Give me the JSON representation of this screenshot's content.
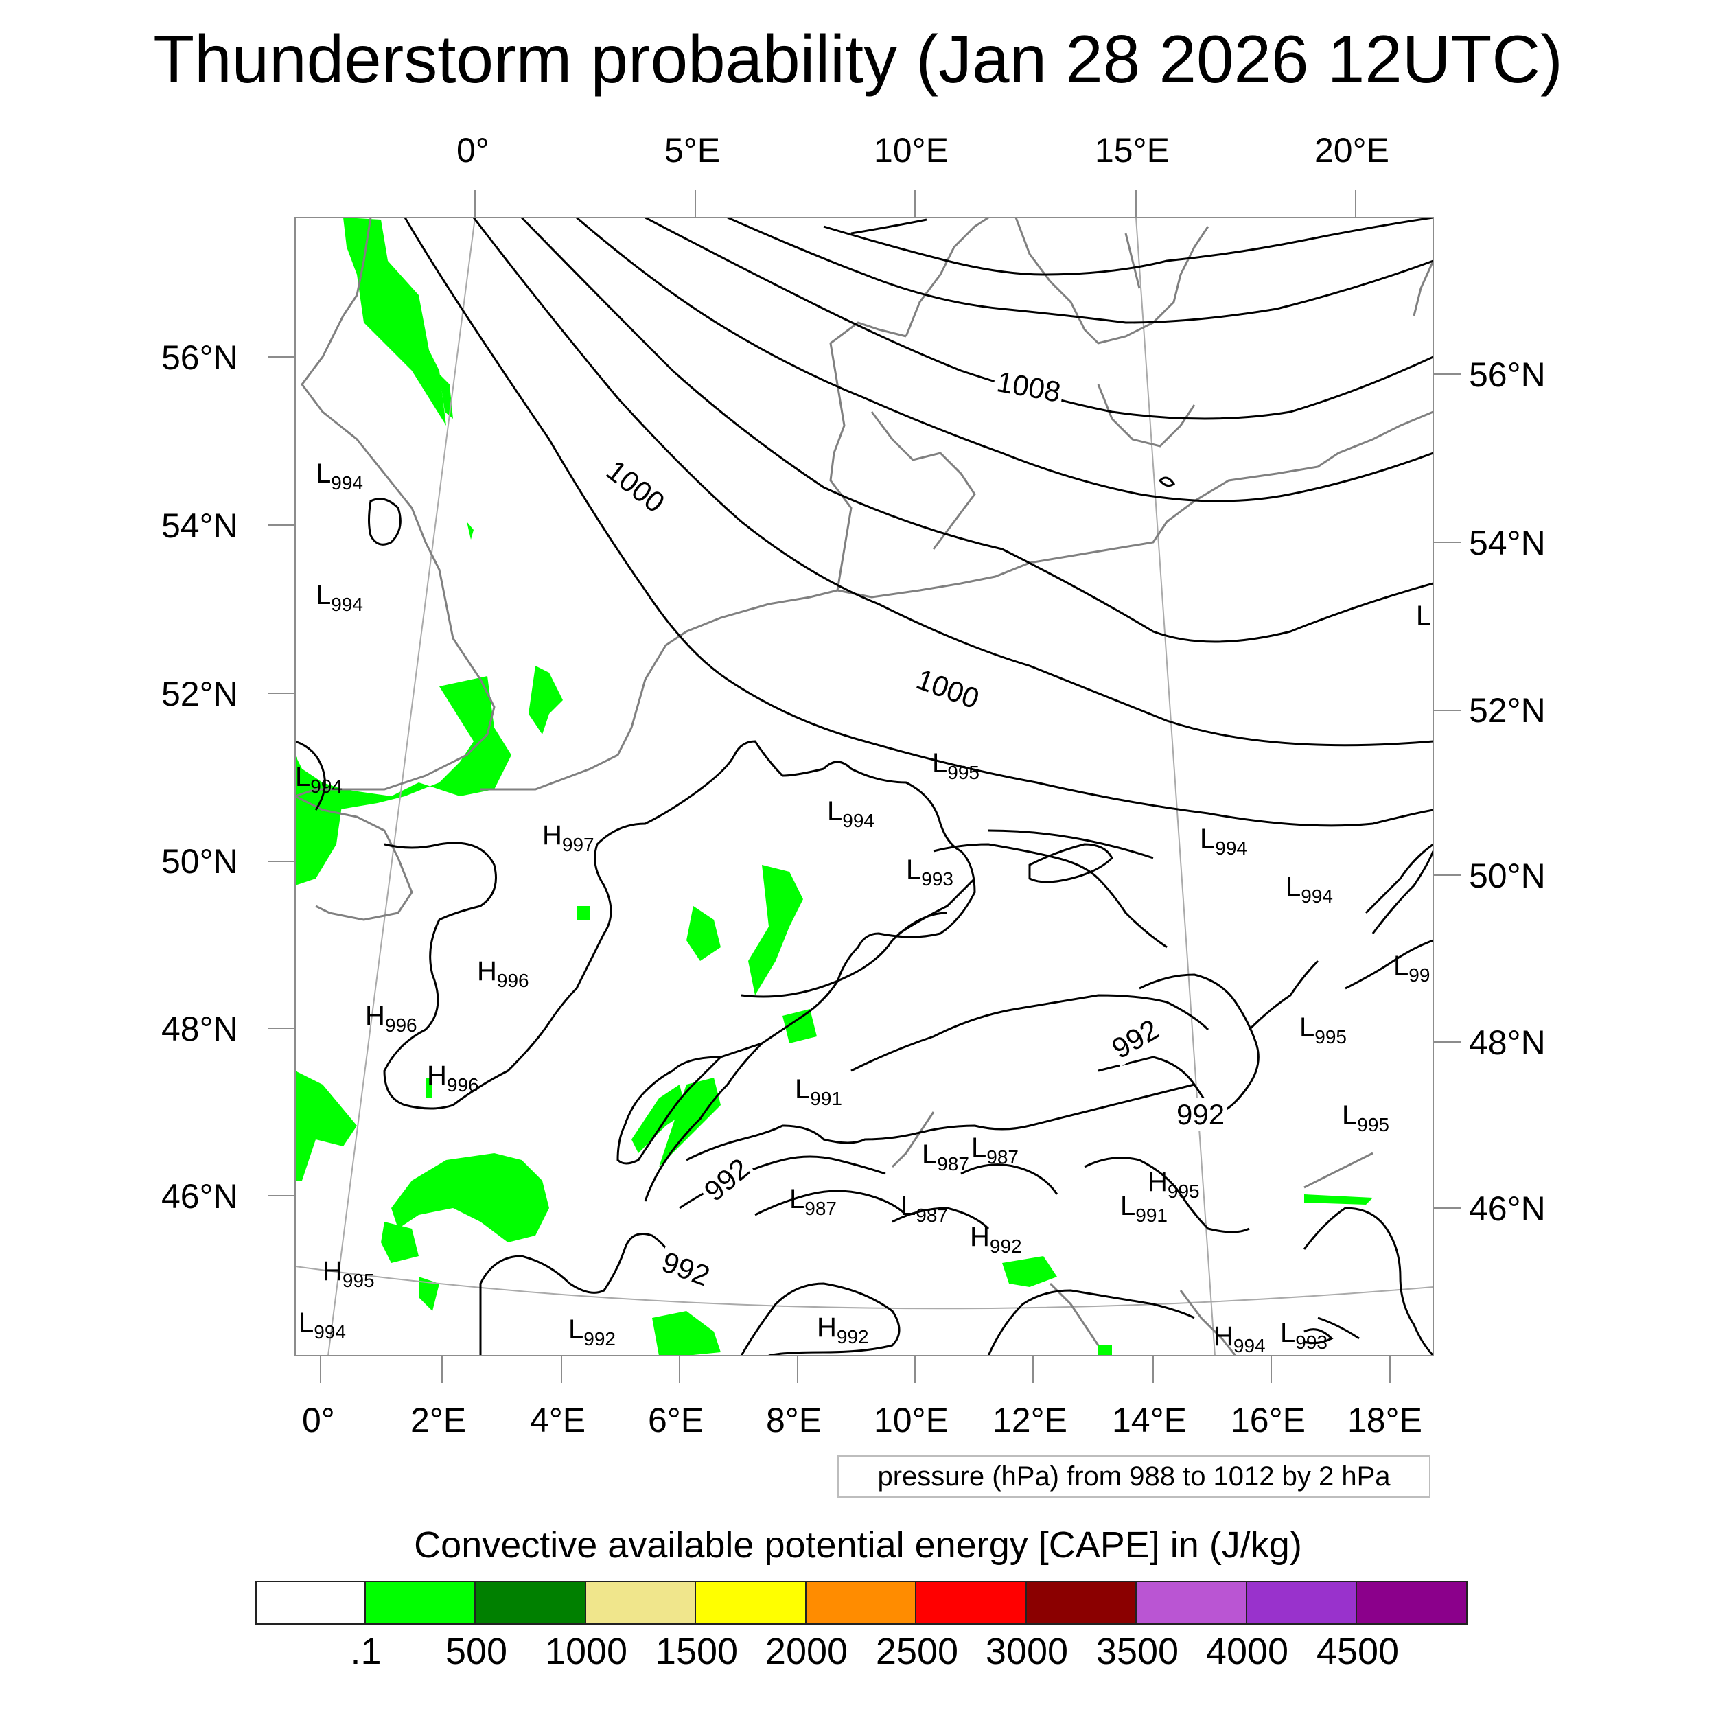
{
  "title": "Thunderstorm probability (Jan 28 2026 12UTC)",
  "map": {
    "region": "Western and Central Europe",
    "lon_top_labels": [
      "0°",
      "5°E",
      "10°E",
      "15°E",
      "20°E"
    ],
    "lon_bottom_labels": [
      "0°",
      "2°E",
      "4°E",
      "6°E",
      "8°E",
      "10°E",
      "12°E",
      "14°E",
      "16°E",
      "18°E"
    ],
    "lat_left_labels": [
      "56°N",
      "54°N",
      "52°N",
      "50°N",
      "48°N",
      "46°N"
    ],
    "lat_right_labels": [
      "56°N",
      "54°N",
      "52°N",
      "50°N",
      "48°N",
      "46°N"
    ],
    "contour_labels": [
      "1008",
      "1000",
      "1000",
      "992",
      "992",
      "992",
      "992"
    ],
    "pressure_centers": [
      {
        "kind": "L",
        "value": "994"
      },
      {
        "kind": "L",
        "value": "994"
      },
      {
        "kind": "L",
        "value": "994"
      },
      {
        "kind": "L",
        "value": "995"
      },
      {
        "kind": "L",
        "value": "994"
      },
      {
        "kind": "H",
        "value": "997"
      },
      {
        "kind": "L",
        "value": "993"
      },
      {
        "kind": "L",
        "value": "994"
      },
      {
        "kind": "L",
        "value": "994"
      },
      {
        "kind": "H",
        "value": "996"
      },
      {
        "kind": "H",
        "value": "996"
      },
      {
        "kind": "H",
        "value": "996"
      },
      {
        "kind": "L",
        "value": "991"
      },
      {
        "kind": "L",
        "value": "995"
      },
      {
        "kind": "L",
        "value": "995"
      },
      {
        "kind": "L",
        "value": "987"
      },
      {
        "kind": "L",
        "value": "987"
      },
      {
        "kind": "L",
        "value": "987"
      },
      {
        "kind": "L",
        "value": "987"
      },
      {
        "kind": "H",
        "value": "992"
      },
      {
        "kind": "H",
        "value": "995"
      },
      {
        "kind": "L",
        "value": "991"
      },
      {
        "kind": "H",
        "value": "995"
      },
      {
        "kind": "L",
        "value": "994"
      },
      {
        "kind": "L",
        "value": "992"
      },
      {
        "kind": "H",
        "value": "992"
      },
      {
        "kind": "H",
        "value": "994"
      },
      {
        "kind": "L",
        "value": "993"
      },
      {
        "kind": "L",
        "value": "99"
      },
      {
        "kind": "L",
        "value": ""
      }
    ],
    "contour_note": "pressure (hPa) from 988 to 1012 by 2 hPa"
  },
  "colorbar": {
    "title": "Convective available potential energy [CAPE] in (J/kg)",
    "colors": [
      "#ffffff",
      "#00ff00",
      "#008000",
      "#f0e68c",
      "#ffff00",
      "#ff8c00",
      "#ff0000",
      "#8b0000",
      "#ba55d3",
      "#9932cc",
      "#8b008b"
    ],
    "labels": [
      ".1",
      "500",
      "1000",
      "1500",
      "2000",
      "2500",
      "3000",
      "3500",
      "4000",
      "4500"
    ]
  },
  "colors": {
    "cape_low": "#00ff00",
    "coastline": "#808080",
    "isobar": "#000000",
    "grid": "#aaaaaa"
  }
}
